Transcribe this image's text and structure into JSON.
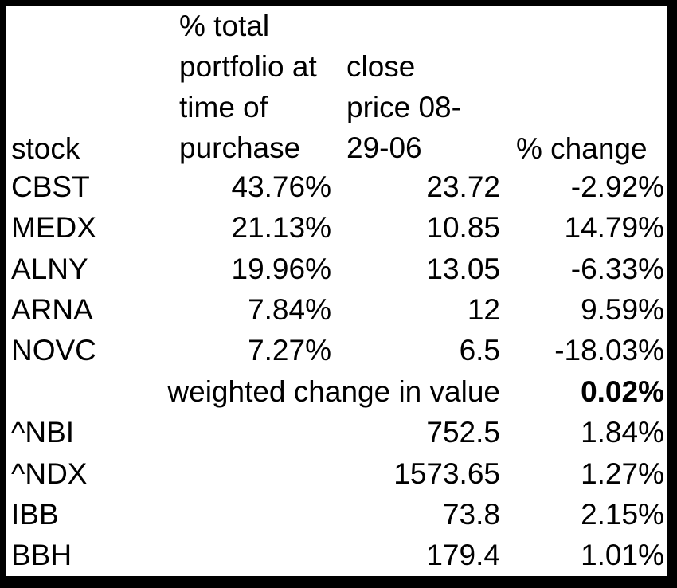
{
  "table": {
    "headers": {
      "stock": "stock",
      "pct_portfolio": [
        "% total",
        "portfolio at",
        "time of",
        "purchase"
      ],
      "close_price": [
        "close",
        "price 08-",
        "29-06"
      ],
      "pct_change": "% change"
    },
    "rows": [
      {
        "stock": "CBST",
        "pct_portfolio": "43.76%",
        "close_price": "23.72",
        "pct_change": "-2.92%"
      },
      {
        "stock": "MEDX",
        "pct_portfolio": "21.13%",
        "close_price": "10.85",
        "pct_change": "14.79%"
      },
      {
        "stock": "ALNY",
        "pct_portfolio": "19.96%",
        "close_price": "13.05",
        "pct_change": "-6.33%"
      },
      {
        "stock": "ARNA",
        "pct_portfolio": "7.84%",
        "close_price": "12",
        "pct_change": "9.59%"
      },
      {
        "stock": "NOVC",
        "pct_portfolio": "7.27%",
        "close_price": "6.5",
        "pct_change": "-18.03%"
      }
    ],
    "weighted": {
      "label": "weighted change in value",
      "value": "0.02%"
    },
    "index_rows": [
      {
        "stock": "^NBI",
        "close_price": "752.5",
        "pct_change": "1.84%"
      },
      {
        "stock": "^NDX",
        "close_price": "1573.65",
        "pct_change": "1.27%"
      },
      {
        "stock": "IBB",
        "close_price": "73.8",
        "pct_change": "2.15%"
      },
      {
        "stock": "BBH",
        "close_price": "179.4",
        "pct_change": "1.01%"
      }
    ]
  }
}
